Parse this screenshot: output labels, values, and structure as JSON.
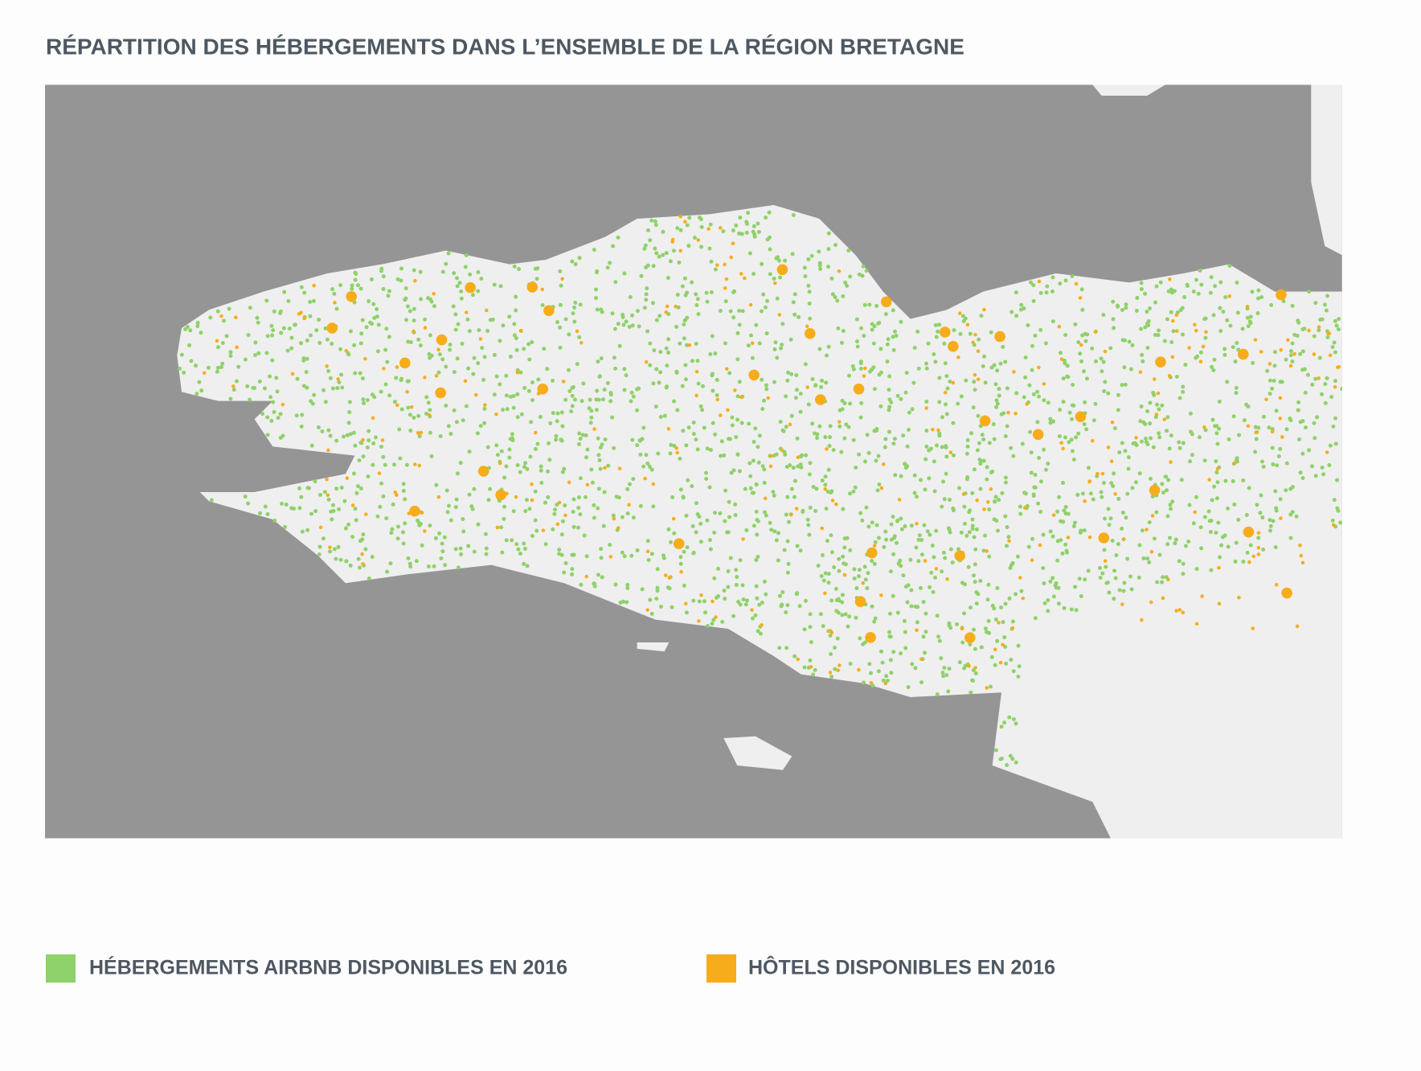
{
  "header": {
    "title": "RÉPARTITION DES HÉBERGEMENTS DANS L’ENSEMBLE DE LA RÉGION BRETAGNE"
  },
  "legend": [
    {
      "label": "HÉBERGEMENTS AIRBNB DISPONIBLES EN 2016",
      "color": "#8fd16a"
    },
    {
      "label": "HÔTELS DISPONIBLES EN 2016",
      "color": "#f7ac1b"
    }
  ]
}
